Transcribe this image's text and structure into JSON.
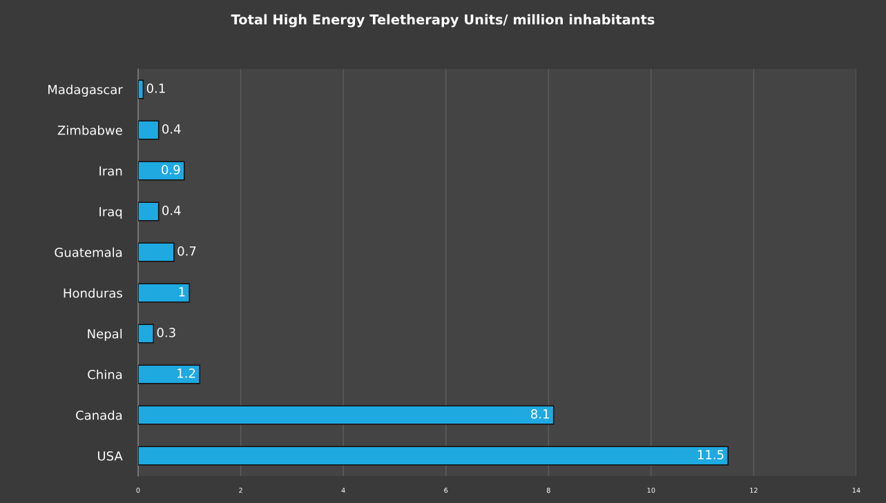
{
  "chart_data": {
    "type": "bar",
    "orientation": "horizontal",
    "title": "Total High Energy Teletherapy Units/ million inhabitants",
    "categories": [
      "Madagascar",
      "Zimbabwe",
      "Iran",
      "Iraq",
      "Guatemala",
      "Honduras",
      "Nepal",
      "China",
      "Canada",
      "USA"
    ],
    "values": [
      0.1,
      0.4,
      0.9,
      0.4,
      0.7,
      1,
      0.3,
      1.2,
      8.1,
      11.5
    ],
    "color": "#1fa9e1",
    "xlim": [
      0,
      14
    ],
    "xticks": [
      0,
      2,
      4,
      6,
      8,
      10,
      12,
      14
    ],
    "grid": "x",
    "data_labels": true
  }
}
